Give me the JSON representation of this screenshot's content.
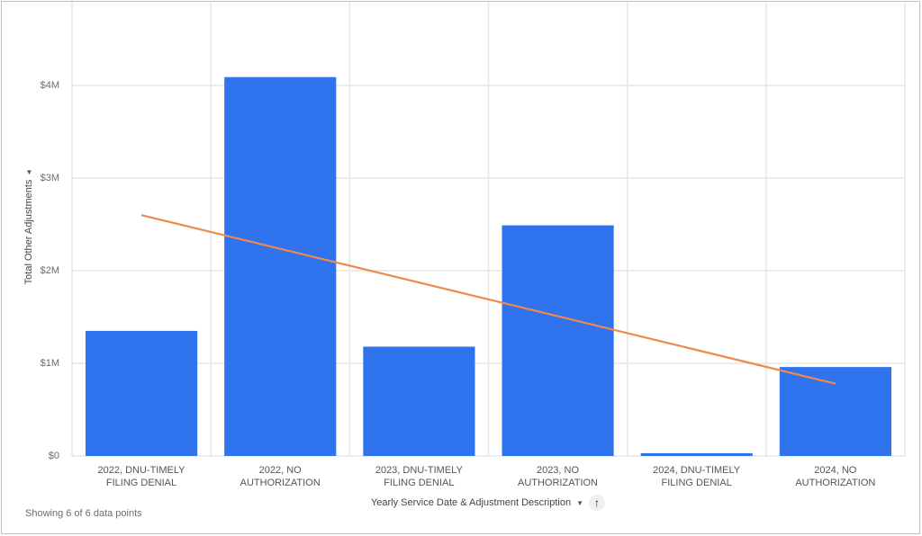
{
  "chart": {
    "y_axis_label": "Total Other Adjustments",
    "x_axis_label": "Yearly Service Date & Adjustment Description",
    "footer": "Showing 6 of 6 data points",
    "bar_color": "#2f74ee",
    "trend_color": "#ee8a4e",
    "y_ticks": [
      "$0",
      "$1M",
      "$2M",
      "$3M",
      "$4M"
    ],
    "x_ticks": [
      [
        "2022, DNU-TIMELY",
        "FILING DENIAL"
      ],
      [
        "2022, NO",
        "AUTHORIZATION"
      ],
      [
        "2023, DNU-TIMELY",
        "FILING DENIAL"
      ],
      [
        "2023, NO",
        "AUTHORIZATION"
      ],
      [
        "2024, DNU-TIMELY",
        "FILING DENIAL"
      ],
      [
        "2024, NO",
        "AUTHORIZATION"
      ]
    ]
  },
  "chart_data": {
    "type": "bar",
    "title": "",
    "xlabel": "Yearly Service Date & Adjustment Description",
    "ylabel": "Total Other Adjustments",
    "categories": [
      "2022, DNU-TIMELY FILING DENIAL",
      "2022, NO AUTHORIZATION",
      "2023, DNU-TIMELY FILING DENIAL",
      "2023, NO AUTHORIZATION",
      "2024, DNU-TIMELY FILING DENIAL",
      "2024, NO AUTHORIZATION"
    ],
    "series": [
      {
        "name": "Total Other Adjustments",
        "type": "bar",
        "values": [
          1350000,
          4090000,
          1180000,
          2490000,
          30000,
          960000
        ]
      },
      {
        "name": "Trend line",
        "type": "line",
        "values": [
          2600000,
          2236000,
          1872000,
          1508000,
          1144000,
          780000
        ]
      }
    ],
    "ylim": [
      0,
      4800000
    ],
    "y_ticks": [
      0,
      1000000,
      2000000,
      3000000,
      4000000
    ],
    "y_tick_labels": [
      "$0",
      "$1M",
      "$2M",
      "$3M",
      "$4M"
    ],
    "grid": true,
    "legend": "none"
  },
  "footer_text": "Showing 6 of 6 data points"
}
